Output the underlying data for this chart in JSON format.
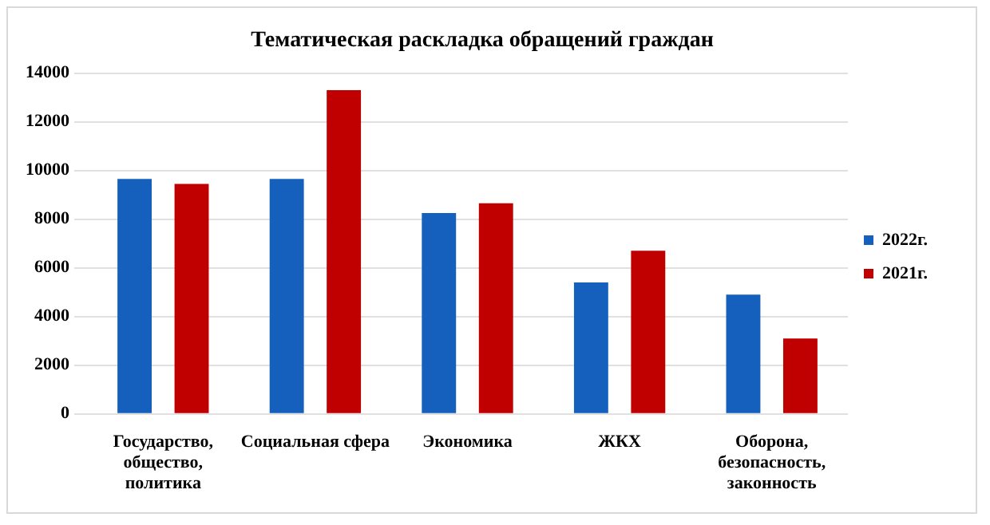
{
  "chart_data": {
    "type": "bar",
    "title": "Тематическая раскладка обращений граждан",
    "categories": [
      "Государство, общество, политика",
      "Социальная сфера",
      "Экономика",
      "ЖКХ",
      "Оборона, безопасность, законность"
    ],
    "series": [
      {
        "name": "2022г.",
        "color": "#1560bd",
        "values": [
          9650,
          9650,
          8250,
          5400,
          4900
        ]
      },
      {
        "name": "2021г.",
        "color": "#c00000",
        "values": [
          9450,
          13300,
          8650,
          6700,
          3100
        ]
      }
    ],
    "ylim": [
      0,
      14000
    ],
    "yticks": [
      0,
      2000,
      4000,
      6000,
      8000,
      10000,
      12000,
      14000
    ],
    "grid": "y",
    "legend": "right"
  }
}
